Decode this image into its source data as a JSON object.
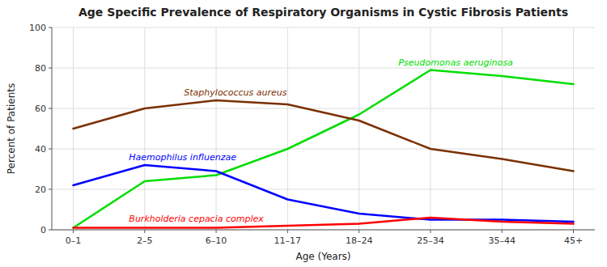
{
  "chart_data": {
    "type": "line",
    "title": "Age Specific Prevalence of Respiratory Organisms in Cystic Fibrosis Patients",
    "x_label": "Age (Years)",
    "y_label": "Percent of Patients",
    "categories": [
      "0–1",
      "2–5",
      "6–10",
      "11–17",
      "18–24",
      "25–34",
      "35–44",
      "45+"
    ],
    "series": [
      {
        "name": "Pseudomonas aeruginosa",
        "color": "#00dd00",
        "values": [
          1,
          24,
          27,
          40,
          57,
          79,
          76,
          72
        ]
      },
      {
        "name": "Staphylococcus aureus",
        "color": "#7B3000",
        "values": [
          50,
          60,
          64,
          62,
          54,
          40,
          35,
          29
        ]
      },
      {
        "name": "Haemophilus influenzae",
        "color": "#0000ff",
        "values": [
          22,
          32,
          29,
          15,
          8,
          5,
          5,
          4
        ]
      },
      {
        "name": "Burkholderia cepacia complex",
        "color": "#ff0000",
        "values": [
          1,
          1,
          1,
          2,
          3,
          6,
          4,
          3
        ]
      }
    ],
    "ylim": [
      0,
      100
    ],
    "yticks": [
      0,
      20,
      40,
      60,
      80,
      100
    ],
    "grid": true
  }
}
